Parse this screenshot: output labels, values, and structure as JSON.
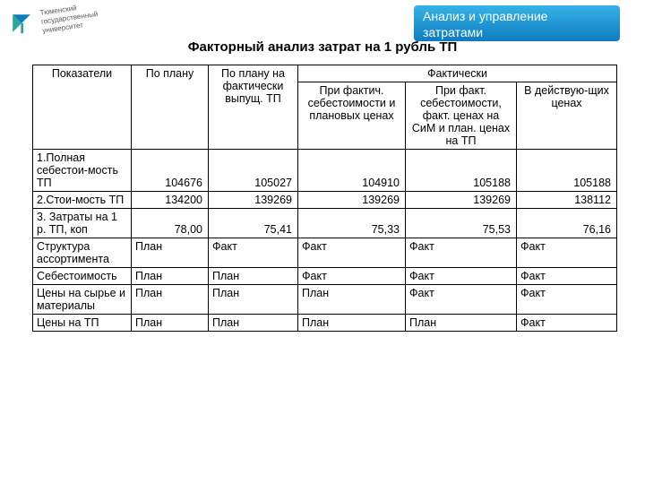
{
  "logo": {
    "text": "Тюменский\nгосударственный\nуниверситет",
    "blue": "#0f7bbf",
    "teal": "#2aa79b"
  },
  "banner": {
    "text": "Анализ и управление затратами",
    "grad_top": "#37b3e8",
    "grad_bottom": "#0f7bbf"
  },
  "title": "Факторный анализ затрат на 1 рубль ТП",
  "table": {
    "headers": {
      "pokazateli": "Показатели",
      "po_planu": "По плану",
      "po_planu_fakt": "По плану на фактически выпущ. ТП",
      "fakticheski": "Фактически",
      "sub1": "При фактич. себестоимости и плановых ценах",
      "sub2": "При факт. себестоимости, факт. ценах на СиМ и план. ценах на ТП",
      "sub3": "В действую-щих ценах"
    },
    "rows": [
      {
        "label": "1.Полная себестои-мость ТП",
        "cells": [
          "104676",
          "105027",
          "104910",
          "105188",
          "105188"
        ],
        "tall": true,
        "align": "num"
      },
      {
        "label": "2.Стои-мость ТП",
        "cells": [
          "134200",
          "139269",
          "139269",
          "139269",
          "138112"
        ],
        "tall": false,
        "align": "num"
      },
      {
        "label": "3. Затраты на 1 р. ТП, коп",
        "cells": [
          "78,00",
          "75,41",
          "75,33",
          "75,53",
          "76,16"
        ],
        "tall": false,
        "align": "num"
      },
      {
        "label": "Структура ассортимента",
        "cells": [
          "План",
          "Факт",
          "Факт",
          "Факт",
          "Факт"
        ],
        "tall": false,
        "align": "txt"
      },
      {
        "label": "Себестоимость",
        "cells": [
          "План",
          "План",
          "Факт",
          "Факт",
          "Факт"
        ],
        "tall": false,
        "align": "txt"
      },
      {
        "label": "Цены на сырье и материалы",
        "cells": [
          "План",
          "План",
          "План",
          "Факт",
          "Факт"
        ],
        "tall": false,
        "align": "txt"
      },
      {
        "label": "Цены на ТП",
        "cells": [
          "План",
          "План",
          "План",
          "План",
          "Факт"
        ],
        "tall": false,
        "align": "txt"
      }
    ]
  }
}
